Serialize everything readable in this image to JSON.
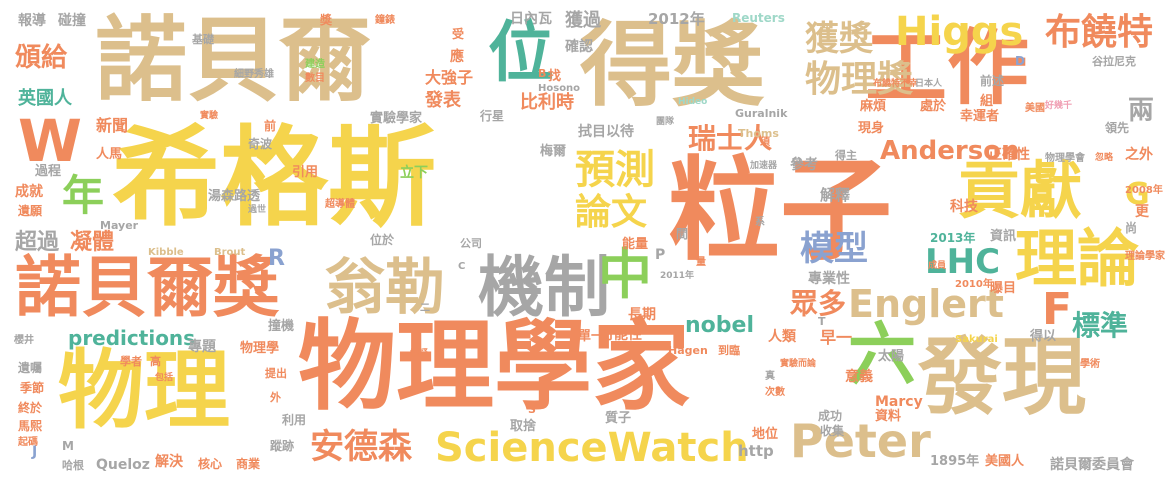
{
  "colors": {
    "orange": "#f08a5d",
    "yellow": "#f5d44c",
    "tan": "#dcbf8c",
    "gray": "#a6a6a6",
    "green": "#8ccf5a",
    "teal": "#4fb39a",
    "blue": "#8aa2d0",
    "pink": "#f0a0b4",
    "mint": "#9fd8c8"
  },
  "words": [
    {
      "text": "希格斯",
      "color": "yellow"
    },
    {
      "text": "粒子",
      "color": "orange"
    },
    {
      "text": "物理學家",
      "color": "orange"
    },
    {
      "text": "諾貝爾",
      "color": "tan"
    },
    {
      "text": "得獎",
      "color": "tan"
    },
    {
      "text": "工作",
      "color": "orange"
    },
    {
      "text": "發現",
      "color": "tan"
    },
    {
      "text": "物理",
      "color": "yellow"
    },
    {
      "text": "諾貝爾獎",
      "color": "orange"
    },
    {
      "text": "翁勒",
      "color": "tan"
    },
    {
      "text": "機制",
      "color": "gray"
    },
    {
      "text": "貢獻",
      "color": "yellow"
    },
    {
      "text": "理論",
      "color": "yellow"
    },
    {
      "text": "六",
      "color": "green"
    },
    {
      "text": "位",
      "color": "teal"
    },
    {
      "text": "中",
      "color": "green"
    },
    {
      "text": "Higgs",
      "color": "yellow"
    },
    {
      "text": "布饒特",
      "color": "orange"
    },
    {
      "text": "物理獎",
      "color": "tan"
    },
    {
      "text": "獲獎",
      "color": "tan"
    },
    {
      "text": "W",
      "color": "orange"
    },
    {
      "text": "年",
      "color": "green"
    },
    {
      "text": "預測",
      "color": "yellow"
    },
    {
      "text": "論文",
      "color": "yellow"
    },
    {
      "text": "瑞士人",
      "color": "orange"
    },
    {
      "text": "模型",
      "color": "blue"
    },
    {
      "text": "眾多",
      "color": "orange"
    },
    {
      "text": "Englert",
      "color": "tan"
    },
    {
      "text": "LHC",
      "color": "teal"
    },
    {
      "text": "F",
      "color": "orange"
    },
    {
      "text": "標準",
      "color": "teal"
    },
    {
      "text": "ScienceWatch",
      "color": "yellow"
    },
    {
      "text": "Peter",
      "color": "tan"
    },
    {
      "text": "安德森",
      "color": "orange"
    },
    {
      "text": "Anderson",
      "color": "orange"
    },
    {
      "text": "G",
      "color": "yellow"
    },
    {
      "text": "頒給",
      "color": "orange"
    },
    {
      "text": "英國人",
      "color": "teal"
    },
    {
      "text": "超過",
      "color": "gray"
    },
    {
      "text": "凝體",
      "color": "orange"
    },
    {
      "text": "predictions",
      "color": "teal"
    },
    {
      "text": "nobel",
      "color": "teal"
    },
    {
      "text": "R",
      "color": "blue"
    },
    {
      "text": "兩",
      "color": "gray"
    },
    {
      "text": "報導",
      "color": "gray"
    },
    {
      "text": "碰撞",
      "color": "gray"
    },
    {
      "text": "基礎",
      "color": "gray"
    },
    {
      "text": "2012年",
      "color": "gray"
    },
    {
      "text": "Reuters",
      "color": "mint"
    },
    {
      "text": "日內瓦",
      "color": "gray"
    },
    {
      "text": "獲過",
      "color": "gray"
    },
    {
      "text": "確認",
      "color": "gray"
    },
    {
      "text": "大強子",
      "color": "orange"
    },
    {
      "text": "發表",
      "color": "orange"
    },
    {
      "text": "比利時",
      "color": "orange"
    },
    {
      "text": "實驗學家",
      "color": "gray"
    },
    {
      "text": "新聞",
      "color": "orange"
    },
    {
      "text": "人馬",
      "color": "orange"
    },
    {
      "text": "過程",
      "color": "gray"
    },
    {
      "text": "成就",
      "color": "orange"
    },
    {
      "text": "遺願",
      "color": "orange"
    },
    {
      "text": "湯森路透",
      "color": "gray"
    },
    {
      "text": "引用",
      "color": "orange"
    },
    {
      "text": "立下",
      "color": "green"
    },
    {
      "text": "梅爾",
      "color": "gray"
    },
    {
      "text": "拭目以待",
      "color": "gray"
    },
    {
      "text": "解釋",
      "color": "gray"
    },
    {
      "text": "參考",
      "color": "gray"
    },
    {
      "text": "正確性",
      "color": "orange"
    },
    {
      "text": "科技",
      "color": "orange"
    },
    {
      "text": "資訊",
      "color": "gray"
    },
    {
      "text": "2013年",
      "color": "teal"
    },
    {
      "text": "曝目",
      "color": "orange"
    },
    {
      "text": "專業性",
      "color": "gray"
    },
    {
      "text": "長期",
      "color": "orange"
    },
    {
      "text": "可能性",
      "color": "orange"
    },
    {
      "text": "單一",
      "color": "orange"
    },
    {
      "text": "人類",
      "color": "orange"
    },
    {
      "text": "早一",
      "color": "orange"
    },
    {
      "text": "得以",
      "color": "gray"
    },
    {
      "text": "撞機",
      "color": "gray"
    },
    {
      "text": "專題",
      "color": "gray"
    },
    {
      "text": "物理學",
      "color": "orange"
    },
    {
      "text": "意義",
      "color": "orange"
    },
    {
      "text": "太陽",
      "color": "gray"
    },
    {
      "text": "成功",
      "color": "gray"
    },
    {
      "text": "收集",
      "color": "gray"
    },
    {
      "text": "Marcy",
      "color": "orange"
    },
    {
      "text": "資料",
      "color": "orange"
    },
    {
      "text": "地位",
      "color": "orange"
    },
    {
      "text": "取捨",
      "color": "gray"
    },
    {
      "text": "質子",
      "color": "gray"
    },
    {
      "text": "http",
      "color": "gray"
    },
    {
      "text": "1895年",
      "color": "gray"
    },
    {
      "text": "美國人",
      "color": "orange"
    },
    {
      "text": "諾貝爾委員會",
      "color": "gray"
    },
    {
      "text": "遺囑",
      "color": "gray"
    },
    {
      "text": "季節",
      "color": "orange"
    },
    {
      "text": "終於",
      "color": "orange"
    },
    {
      "text": "馬熙",
      "color": "orange"
    },
    {
      "text": "起碼",
      "color": "orange"
    },
    {
      "text": "哈根",
      "color": "gray"
    },
    {
      "text": "Queloz",
      "color": "gray"
    },
    {
      "text": "解決",
      "color": "orange"
    },
    {
      "text": "核心",
      "color": "orange"
    },
    {
      "text": "商業",
      "color": "orange"
    },
    {
      "text": "蹤跡",
      "color": "gray"
    },
    {
      "text": "利用",
      "color": "gray"
    },
    {
      "text": "提出",
      "color": "orange"
    },
    {
      "text": "Mayer",
      "color": "gray"
    },
    {
      "text": "Kibble",
      "color": "tan"
    },
    {
      "text": "Brout",
      "color": "tan"
    },
    {
      "text": "位於",
      "color": "gray"
    },
    {
      "text": "公司",
      "color": "gray"
    },
    {
      "text": "能量",
      "color": "orange"
    },
    {
      "text": "Guralnik",
      "color": "gray"
    },
    {
      "text": "Thoms",
      "color": "tan"
    },
    {
      "text": "現身",
      "color": "orange"
    },
    {
      "text": "麻煩",
      "color": "orange"
    },
    {
      "text": "處於",
      "color": "orange"
    },
    {
      "text": "幸運者",
      "color": "orange"
    },
    {
      "text": "前述",
      "color": "gray"
    },
    {
      "text": "谷拉尼克",
      "color": "gray"
    },
    {
      "text": "領先",
      "color": "gray"
    },
    {
      "text": "之外",
      "color": "orange"
    },
    {
      "text": "更",
      "color": "orange"
    },
    {
      "text": "尚",
      "color": "gray"
    },
    {
      "text": "行星",
      "color": "gray"
    },
    {
      "text": "應",
      "color": "orange"
    },
    {
      "text": "受",
      "color": "orange"
    },
    {
      "text": "找",
      "color": "orange"
    },
    {
      "text": "奇波",
      "color": "gray"
    },
    {
      "text": "前",
      "color": "orange"
    },
    {
      "text": "組",
      "color": "orange"
    },
    {
      "text": "得主",
      "color": "gray"
    },
    {
      "text": "D",
      "color": "blue"
    },
    {
      "text": "J",
      "color": "blue"
    },
    {
      "text": "M",
      "color": "gray"
    },
    {
      "text": "P",
      "color": "gray"
    },
    {
      "text": "細野秀雄",
      "color": "gray"
    },
    {
      "text": "建造",
      "color": "green"
    },
    {
      "text": "數目",
      "color": "orange"
    },
    {
      "text": "鐘錶",
      "color": "orange"
    },
    {
      "text": "獎",
      "color": "orange"
    },
    {
      "text": "布饒特不幸",
      "color": "orange"
    },
    {
      "text": "日本人",
      "color": "gray"
    },
    {
      "text": "好幾千",
      "color": "pink"
    },
    {
      "text": "美國",
      "color": "orange"
    },
    {
      "text": "Hosono",
      "color": "gray"
    },
    {
      "text": "Hideo",
      "color": "mint"
    },
    {
      "text": "團隊",
      "color": "gray"
    },
    {
      "text": "物理學會",
      "color": "gray"
    },
    {
      "text": "忽略",
      "color": "orange"
    },
    {
      "text": "2008年",
      "color": "orange"
    },
    {
      "text": "理論學家",
      "color": "orange"
    },
    {
      "text": "2010年",
      "color": "orange"
    },
    {
      "text": "成員",
      "color": "orange"
    },
    {
      "text": "2011年",
      "color": "gray"
    },
    {
      "text": "Hagen",
      "color": "orange"
    },
    {
      "text": "到臨",
      "color": "orange"
    },
    {
      "text": "Sakurai",
      "color": "yellow"
    },
    {
      "text": "學術",
      "color": "orange"
    },
    {
      "text": "學者",
      "color": "orange"
    },
    {
      "text": "高",
      "color": "orange"
    },
    {
      "text": "包括",
      "color": "orange"
    },
    {
      "text": "櫻井",
      "color": "gray"
    },
    {
      "text": "實驗而論",
      "color": "orange"
    },
    {
      "text": "次數",
      "color": "orange"
    },
    {
      "text": "加速器",
      "color": "gray"
    },
    {
      "text": "系",
      "color": "gray"
    },
    {
      "text": "真",
      "color": "gray"
    },
    {
      "text": "外",
      "color": "orange"
    },
    {
      "text": "超導體",
      "color": "orange"
    },
    {
      "text": "過世",
      "color": "gray"
    },
    {
      "text": "實驗",
      "color": "orange"
    },
    {
      "text": "須",
      "color": "orange"
    },
    {
      "text": "C",
      "color": "gray"
    },
    {
      "text": "S",
      "color": "orange"
    },
    {
      "text": "T",
      "color": "gray"
    },
    {
      "text": "B",
      "color": "orange"
    },
    {
      "text": "二",
      "color": "gray"
    },
    {
      "text": "量",
      "color": "orange"
    },
    {
      "text": "間",
      "color": "gray"
    },
    {
      "text": "懷疑",
      "color": "orange"
    }
  ]
}
